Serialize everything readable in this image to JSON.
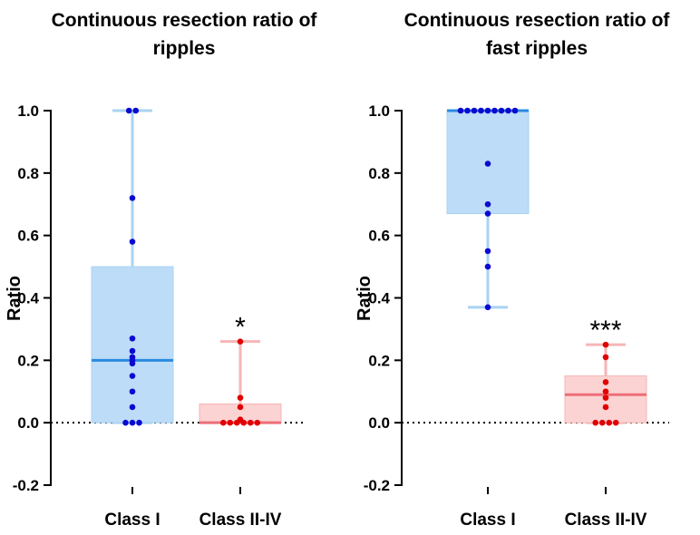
{
  "colors": {
    "class1_box_fill": "#bcdcf8",
    "class1_whisker": "#a9d3f2",
    "class1_median": "#2a8ae0",
    "class1_point": "#0a0ad0",
    "class2_box_fill": "#fcd3d3",
    "class2_whisker": "#f6b6b6",
    "class2_median": "#ee6e78",
    "class2_point": "#e00000",
    "axis": "#000000"
  },
  "chart_data": [
    {
      "type": "box",
      "title_lines": [
        "Continuous resection ratio of",
        "ripples"
      ],
      "ylabel": "Ratio",
      "ylim": [
        -0.2,
        1.0
      ],
      "yticks": [
        "-0.2",
        "0.0",
        "0.2",
        "0.4",
        "0.6",
        "0.8",
        "1.0"
      ],
      "reference_line": 0.0,
      "groups": [
        {
          "name": "Class I",
          "scheme": "class1",
          "q1": 0.0,
          "median": 0.2,
          "q3": 0.5,
          "whisker_low": 0.0,
          "whisker_high": 1.0,
          "points": [
            1.0,
            1.0,
            0.72,
            0.58,
            0.27,
            0.23,
            0.21,
            0.2,
            0.19,
            0.15,
            0.1,
            0.05,
            0.0,
            0.0,
            0.0
          ],
          "significance": ""
        },
        {
          "name": "Class II-IV",
          "scheme": "class2",
          "q1": 0.0,
          "median": 0.0,
          "q3": 0.06,
          "whisker_low": 0.0,
          "whisker_high": 0.26,
          "points": [
            0.26,
            0.08,
            0.05,
            0.01,
            0.0,
            0.0,
            0.0,
            0.0,
            0.0,
            0.0
          ],
          "significance": "*"
        }
      ]
    },
    {
      "type": "box",
      "title_lines": [
        "Continuous resection ratio of",
        "fast ripples"
      ],
      "ylabel": "Ratio",
      "ylim": [
        -0.2,
        1.0
      ],
      "yticks": [
        "-0.2",
        "0.0",
        "0.2",
        "0.4",
        "0.6",
        "0.8",
        "1.0"
      ],
      "reference_line": 0.0,
      "groups": [
        {
          "name": "Class I",
          "scheme": "class1",
          "q1": 0.67,
          "median": 1.0,
          "q3": 1.0,
          "whisker_low": 0.37,
          "whisker_high": 1.0,
          "points": [
            1.0,
            1.0,
            1.0,
            1.0,
            1.0,
            1.0,
            1.0,
            1.0,
            1.0,
            0.83,
            0.7,
            0.67,
            0.55,
            0.5,
            0.37
          ],
          "significance": ""
        },
        {
          "name": "Class II-IV",
          "scheme": "class2",
          "q1": 0.0,
          "median": 0.09,
          "q3": 0.15,
          "whisker_low": 0.0,
          "whisker_high": 0.25,
          "points": [
            0.25,
            0.21,
            0.13,
            0.1,
            0.08,
            0.05,
            0.0,
            0.0,
            0.0,
            0.0
          ],
          "significance": "***"
        }
      ]
    }
  ]
}
